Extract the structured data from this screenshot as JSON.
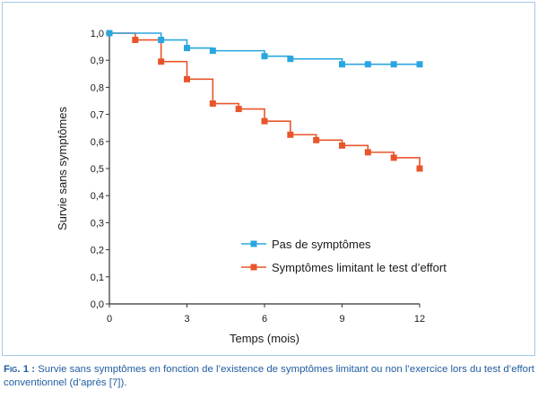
{
  "chart_data": {
    "type": "line",
    "step": true,
    "title": "",
    "xlabel": "Temps (mois)",
    "ylabel": "Survie sans symptômes",
    "xlim": [
      0,
      12
    ],
    "ylim": [
      0,
      1
    ],
    "x_ticks": [
      0,
      3,
      6,
      9,
      12
    ],
    "x_tick_labels": [
      "0",
      "3",
      "6",
      "9",
      "12"
    ],
    "y_ticks": [
      0,
      0.1,
      0.2,
      0.3,
      0.4,
      0.5,
      0.6,
      0.7,
      0.8,
      0.9,
      1.0
    ],
    "y_tick_labels": [
      "0,0",
      "0,1",
      "0,2",
      "0,3",
      "0,4",
      "0,5",
      "0,6",
      "0,7",
      "0,8",
      "0,9",
      "1,0"
    ],
    "grid": false,
    "legend_position": "lower-right",
    "series": [
      {
        "name": "Pas de symptômes",
        "color": "#29a6df",
        "marker": "square",
        "x": [
          0,
          2,
          3,
          4,
          6,
          7,
          9,
          10,
          11,
          12
        ],
        "y": [
          1.0,
          0.975,
          0.945,
          0.935,
          0.915,
          0.905,
          0.885,
          0.885,
          0.885,
          0.885
        ]
      },
      {
        "name": "Symptômes limitant le test d’effort",
        "color": "#e8552b",
        "marker": "square",
        "x": [
          0,
          1,
          2,
          3,
          4,
          5,
          6,
          7,
          8,
          9,
          10,
          11,
          12
        ],
        "y": [
          1.0,
          0.975,
          0.895,
          0.83,
          0.74,
          0.72,
          0.675,
          0.625,
          0.605,
          0.585,
          0.56,
          0.54,
          0.5
        ]
      }
    ]
  },
  "caption": {
    "label": "Fig. 1 :",
    "text": "Survie sans symptômes en fonction de l’existence de symptômes limitant ou non l’exercice lors du test d’effort conventionnel (d’après [7])."
  }
}
